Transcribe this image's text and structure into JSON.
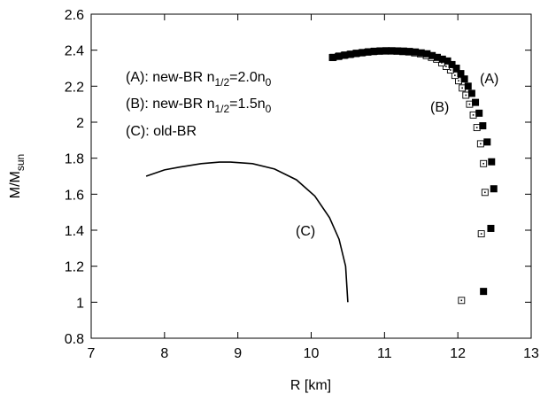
{
  "chart_data": {
    "type": "scatter",
    "xlabel": "R  [km]",
    "ylabel": "M/M",
    "ylabel_sub": "sun",
    "xlim": [
      7,
      13
    ],
    "ylim": [
      0.8,
      2.6
    ],
    "x_ticks": [
      "7",
      "8",
      "9",
      "10",
      "11",
      "12",
      "13"
    ],
    "y_ticks": [
      "0.8",
      "1",
      "1.2",
      "1.4",
      "1.6",
      "1.8",
      "2",
      "2.2",
      "2.4",
      "2.6"
    ],
    "grid": false,
    "legend": [
      {
        "pre": "(A): new-BR n",
        "sub": "1/2",
        "post": "=2.0n",
        "sub2": "0"
      },
      {
        "pre": "(B): new-BR n",
        "sub": "1/2",
        "post": "=1.5n",
        "sub2": "0"
      },
      {
        "pre": "(C): old-BR",
        "sub": "",
        "post": "",
        "sub2": ""
      }
    ],
    "curve_labels": [
      "(A)",
      "(B)",
      "(C)"
    ],
    "series": [
      {
        "key": "A",
        "marker": "filled-square",
        "points": [
          [
            12.35,
            1.06
          ],
          [
            12.45,
            1.41
          ],
          [
            12.49,
            1.63
          ],
          [
            12.46,
            1.78
          ],
          [
            12.4,
            1.89
          ],
          [
            12.34,
            1.98
          ],
          [
            12.29,
            2.05
          ],
          [
            12.24,
            2.11
          ],
          [
            12.19,
            2.16
          ],
          [
            12.14,
            2.2
          ],
          [
            12.09,
            2.24
          ],
          [
            12.04,
            2.27
          ],
          [
            11.98,
            2.3
          ],
          [
            11.92,
            2.32
          ],
          [
            11.86,
            2.34
          ],
          [
            11.79,
            2.35
          ],
          [
            11.72,
            2.36
          ],
          [
            11.65,
            2.37
          ],
          [
            11.58,
            2.38
          ],
          [
            11.5,
            2.385
          ],
          [
            11.42,
            2.39
          ],
          [
            11.34,
            2.393
          ],
          [
            11.26,
            2.395
          ],
          [
            11.18,
            2.396
          ],
          [
            11.1,
            2.397
          ],
          [
            11.02,
            2.397
          ],
          [
            10.94,
            2.396
          ],
          [
            10.86,
            2.394
          ],
          [
            10.78,
            2.391
          ],
          [
            10.7,
            2.387
          ],
          [
            10.62,
            2.383
          ],
          [
            10.54,
            2.378
          ],
          [
            10.46,
            2.373
          ],
          [
            10.38,
            2.367
          ],
          [
            10.3,
            2.36
          ]
        ]
      },
      {
        "key": "B",
        "marker": "open-square-dot",
        "points": [
          [
            12.05,
            1.01
          ],
          [
            12.32,
            1.38
          ],
          [
            12.37,
            1.61
          ],
          [
            12.35,
            1.77
          ],
          [
            12.31,
            1.88
          ],
          [
            12.26,
            1.97
          ],
          [
            12.21,
            2.04
          ],
          [
            12.16,
            2.1
          ],
          [
            12.11,
            2.15
          ],
          [
            12.06,
            2.19
          ],
          [
            12.01,
            2.23
          ],
          [
            11.96,
            2.26
          ],
          [
            11.9,
            2.29
          ],
          [
            11.84,
            2.31
          ],
          [
            11.78,
            2.33
          ],
          [
            11.71,
            2.35
          ],
          [
            11.64,
            2.36
          ],
          [
            11.57,
            2.37
          ],
          [
            11.49,
            2.38
          ],
          [
            11.41,
            2.385
          ],
          [
            11.33,
            2.39
          ],
          [
            11.25,
            2.392
          ],
          [
            11.17,
            2.394
          ],
          [
            11.09,
            2.395
          ],
          [
            11.01,
            2.395
          ],
          [
            10.93,
            2.394
          ],
          [
            10.85,
            2.392
          ],
          [
            10.77,
            2.389
          ],
          [
            10.69,
            2.385
          ],
          [
            10.61,
            2.381
          ],
          [
            10.53,
            2.376
          ],
          [
            10.45,
            2.371
          ],
          [
            10.37,
            2.365
          ],
          [
            10.29,
            2.359
          ]
        ]
      },
      {
        "key": "C",
        "marker": "line",
        "points": [
          [
            10.5,
            1.0
          ],
          [
            10.47,
            1.2
          ],
          [
            10.38,
            1.35
          ],
          [
            10.25,
            1.47
          ],
          [
            10.05,
            1.59
          ],
          [
            9.8,
            1.68
          ],
          [
            9.5,
            1.74
          ],
          [
            9.2,
            1.77
          ],
          [
            8.9,
            1.778
          ],
          [
            8.75,
            1.778
          ],
          [
            8.5,
            1.77
          ],
          [
            8.2,
            1.75
          ],
          [
            8.0,
            1.735
          ],
          [
            7.75,
            1.7
          ]
        ]
      }
    ]
  }
}
